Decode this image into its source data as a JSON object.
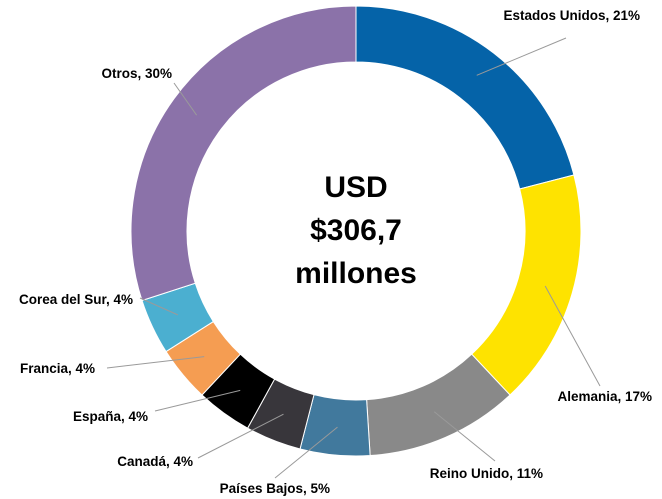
{
  "chart_data": {
    "type": "pie",
    "center_text": [
      "USD",
      "$306,7",
      "millones"
    ],
    "slices": [
      {
        "name": "Estados Unidos",
        "value": 21,
        "label": "Estados Unidos, 21%",
        "color": "#0563a8"
      },
      {
        "name": "Alemania",
        "value": 17,
        "label": "Alemania, 17%",
        "color": "#fee300"
      },
      {
        "name": "Reino Unido",
        "value": 11,
        "label": "Reino Unido, 11%",
        "color": "#898989"
      },
      {
        "name": "Países Bajos",
        "value": 5,
        "label": "Países Bajos, 5%",
        "color": "#41799d"
      },
      {
        "name": "Canadá",
        "value": 4,
        "label": "Canadá, 4%",
        "color": "#38363b"
      },
      {
        "name": "España",
        "value": 4,
        "label": "España, 4%",
        "color": "#000000"
      },
      {
        "name": "Francia",
        "value": 4,
        "label": "Francia, 4%",
        "color": "#f59d52"
      },
      {
        "name": "Corea del Sur",
        "value": 4,
        "label": "Corea del Sur, 4%",
        "color": "#4bafd0"
      },
      {
        "name": "Otros",
        "value": 30,
        "label": "Otros, 30%",
        "color": "#8b72a9"
      }
    ]
  }
}
